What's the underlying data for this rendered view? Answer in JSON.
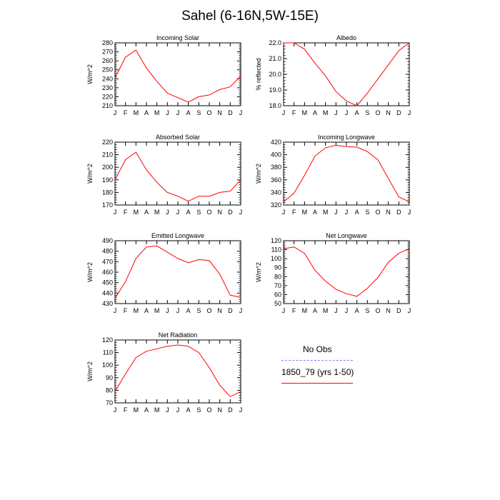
{
  "title": "Sahel (6-16N,5W-15E)",
  "months": [
    "J",
    "F",
    "M",
    "A",
    "M",
    "J",
    "J",
    "A",
    "S",
    "O",
    "N",
    "D",
    "J"
  ],
  "chart_data": [
    {
      "type": "line",
      "title": "Incoming Solar",
      "ylabel": "W/m^2",
      "ylim": [
        210,
        280
      ],
      "yticks": [
        210,
        220,
        230,
        240,
        250,
        260,
        270,
        280
      ],
      "ydecimals": 0,
      "series": [
        {
          "values": [
            241,
            264,
            272,
            252,
            237,
            224,
            219,
            214,
            220,
            222,
            228,
            231,
            243
          ]
        }
      ]
    },
    {
      "type": "line",
      "title": "Albedo",
      "ylabel": "% reflected",
      "ylim": [
        18.0,
        22.0
      ],
      "yticks": [
        18.0,
        19.0,
        20.0,
        21.0,
        22.0
      ],
      "ydecimals": 1,
      "series": [
        {
          "values": [
            22.0,
            22.0,
            21.6,
            20.7,
            19.9,
            18.9,
            18.3,
            18.0,
            18.8,
            19.7,
            20.6,
            21.5,
            22.0
          ]
        }
      ]
    },
    {
      "type": "line",
      "title": "Absorbed Solar",
      "ylabel": "W/m^2",
      "ylim": [
        170,
        220
      ],
      "yticks": [
        170,
        180,
        190,
        200,
        210,
        220
      ],
      "ydecimals": 0,
      "series": [
        {
          "values": [
            190,
            206,
            212,
            198,
            188,
            180,
            177,
            173,
            177,
            177,
            180,
            181,
            190
          ]
        }
      ]
    },
    {
      "type": "line",
      "title": "Incoming Longwave",
      "ylabel": "W/m^2",
      "ylim": [
        320,
        420
      ],
      "yticks": [
        320,
        340,
        360,
        380,
        400,
        420
      ],
      "ydecimals": 0,
      "series": [
        {
          "values": [
            325,
            339,
            367,
            398,
            411,
            415,
            413,
            412,
            405,
            392,
            362,
            333,
            325
          ]
        }
      ]
    },
    {
      "type": "line",
      "title": "Emitted Longwave",
      "ylabel": "W/m^2",
      "ylim": [
        430,
        490
      ],
      "yticks": [
        430,
        440,
        450,
        460,
        470,
        480,
        490
      ],
      "ydecimals": 0,
      "series": [
        {
          "values": [
            435,
            451,
            473,
            484,
            485,
            479,
            473,
            469,
            472,
            471,
            458,
            438,
            436
          ]
        }
      ]
    },
    {
      "type": "line",
      "title": "Net Longwave",
      "ylabel": "W/m^2",
      "ylim": [
        50,
        120
      ],
      "yticks": [
        50,
        60,
        70,
        80,
        90,
        100,
        110,
        120
      ],
      "ydecimals": 0,
      "series": [
        {
          "values": [
            111,
            113,
            106,
            87,
            75,
            66,
            61,
            58,
            67,
            79,
            96,
            106,
            111
          ]
        }
      ]
    },
    {
      "type": "line",
      "title": "Net Radiation",
      "ylabel": "W/m^2",
      "ylim": [
        70,
        120
      ],
      "yticks": [
        70,
        80,
        90,
        100,
        110,
        120
      ],
      "ydecimals": 0,
      "series": [
        {
          "values": [
            79,
            93,
            106,
            111,
            113,
            115,
            116,
            115,
            110,
            98,
            84,
            75,
            79
          ]
        }
      ]
    }
  ],
  "legend": {
    "obs_label": "No Obs",
    "obs_color": "#8080ff",
    "model_label": "1850_79 (yrs 1-50)",
    "model_color": "#ff0000"
  },
  "line_color": "#ff0000"
}
